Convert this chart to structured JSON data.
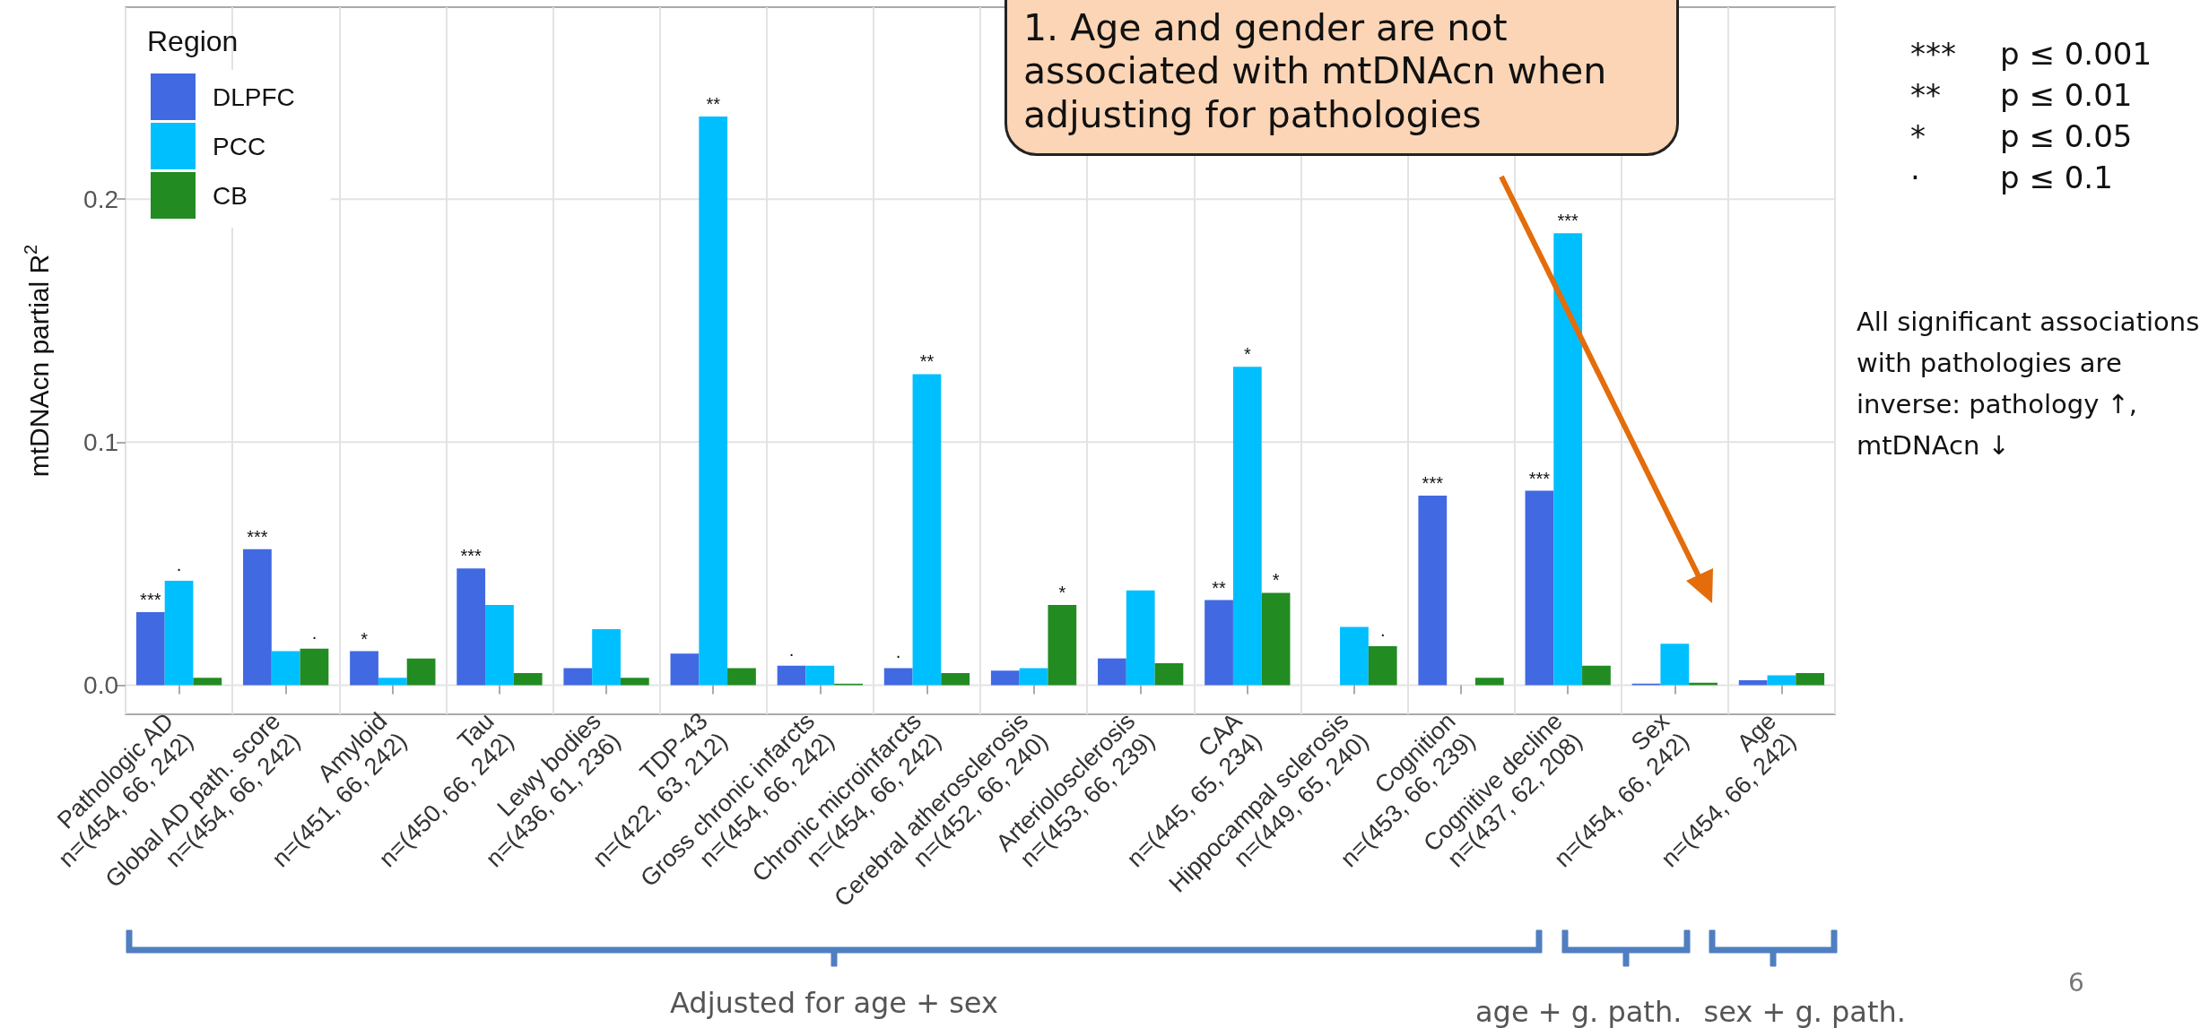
{
  "chart_data": {
    "type": "bar",
    "ylabel": "mtDNAcn partial R$^{2}$",
    "legend_title": "Region",
    "legend": "top left",
    "grid": true,
    "categories": [
      "Pathologic AD\nn=(454, 66, 242)",
      "Global AD path. score\nn=(454, 66, 242)",
      "Amyloid\nn=(451, 66, 242)",
      "Tau\nn=(450, 66, 242)",
      "Lewy bodies\nn=(436, 61, 236)",
      "TDP-43\nn=(422, 63, 212)",
      "Gross chronic infarcts\nn=(454, 66, 242)",
      "Chronic microinfarcts\nn=(454, 66, 242)",
      "Cerebral atherosclerosis\nn=(452, 66, 240)",
      "Arteriolosclerosis\nn=(453, 66, 239)",
      "CAA\nn=(445, 65, 234)",
      "Hippocampal sclerosis\nn=(449, 65, 240)",
      "Cognition\nn=(453, 66, 239)",
      "Cognitive decline\nn=(437, 62, 208)",
      "Sex\nn=(454, 66, 242)",
      "Age\nn=(454, 66, 242)"
    ],
    "ylim": [
      -0.012,
      0.279
    ],
    "yticks": [
      {
        "value": 0,
        "label": "0.0"
      },
      {
        "value": 0.1,
        "label": "0.1"
      },
      {
        "value": 0.2,
        "label": "0.2"
      }
    ],
    "series": [
      {
        "name": "DLPFC",
        "color": "#4169e1",
        "values": [
          0.03,
          0.056,
          0.014,
          0.048,
          0.007,
          0.013,
          0.008,
          0.007,
          0.006,
          0.011,
          0.035,
          null,
          0.078,
          0.08,
          0.0006,
          0.002
        ],
        "value_labels": [
          "***",
          "***",
          "*",
          "***",
          null,
          null,
          "·",
          "·",
          null,
          null,
          "**",
          null,
          "***",
          "***",
          null,
          null
        ]
      },
      {
        "name": "PCC",
        "color": "#00bfff",
        "values": [
          0.043,
          0.014,
          0.003,
          0.033,
          0.023,
          0.234,
          0.008,
          0.128,
          0.007,
          0.039,
          0.131,
          0.024,
          null,
          0.186,
          0.017,
          0.004
        ],
        "value_labels": [
          "·",
          null,
          null,
          null,
          null,
          "**",
          null,
          "**",
          null,
          null,
          "*",
          null,
          null,
          "***",
          null,
          null
        ]
      },
      {
        "name": "CB",
        "color": "#228b22",
        "values": [
          0.003,
          0.015,
          0.011,
          0.005,
          0.003,
          0.007,
          0.0006,
          0.005,
          0.033,
          0.009,
          0.038,
          0.016,
          0.003,
          0.008,
          0.001,
          0.005
        ],
        "value_labels": [
          null,
          "·",
          null,
          null,
          null,
          null,
          null,
          null,
          "*",
          null,
          "*",
          "·",
          null,
          null,
          null,
          null
        ]
      }
    ],
    "annotations": [
      "1. Age and gender are not associated with mtDNAcn when adjusting for pathologies",
      "*** p ≤ 0.001",
      "** p ≤ 0.01",
      "* p ≤ 0.05",
      "· p ≤ 0.1",
      "All significant associations with pathologies are inverse: pathology ↑, mtDNAcn ↓",
      "Adjusted for age + sex",
      "age + g. path.",
      "sex + g. path.",
      "6"
    ]
  }
}
